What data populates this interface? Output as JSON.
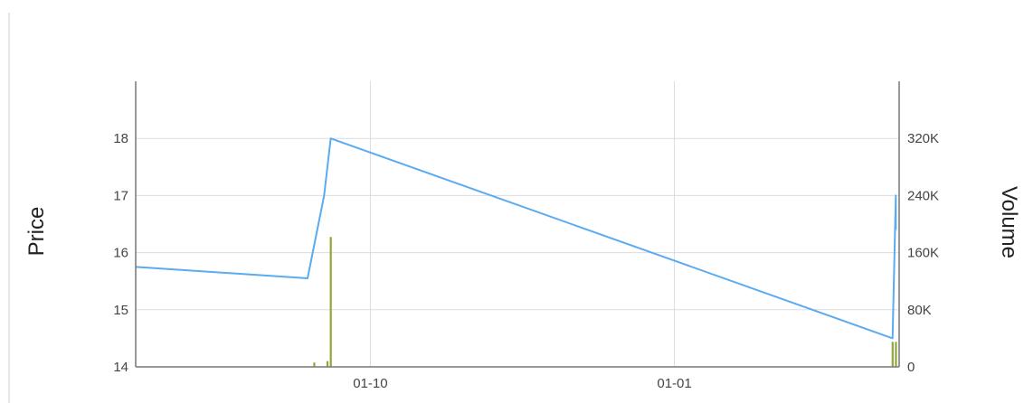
{
  "chart_data": {
    "type": "line",
    "xlabel": "",
    "ylabel": "Price",
    "y2label": "Volume",
    "x_range": [
      "2013-07-22",
      "2014-03-10"
    ],
    "ylim": [
      14,
      19
    ],
    "y2lim": [
      0,
      400000
    ],
    "x_ticks": [
      {
        "date": "2013-10-01",
        "label": "01-10"
      },
      {
        "date": "2014-01-01",
        "label": "01-01"
      }
    ],
    "y_ticks": [
      "14",
      "15",
      "16",
      "17",
      "18"
    ],
    "y2_ticks": [
      "0",
      "80K",
      "160K",
      "240K",
      "320K"
    ],
    "grid": true,
    "series": [
      {
        "kind": "line",
        "color": "#5aabf0",
        "x": [
          "2013-07-22",
          "2013-09-12",
          "2013-09-17",
          "2013-09-19",
          "2014-03-08",
          "2014-03-09",
          "2014-03-09"
        ],
        "values": [
          15.75,
          15.55,
          17.0,
          18.0,
          14.5,
          17.0,
          16.4
        ]
      },
      {
        "kind": "bar",
        "color": "#8fa63a",
        "x": [
          "2013-09-14",
          "2013-09-18",
          "2013-09-19",
          "2014-03-08",
          "2014-03-09"
        ],
        "values": [
          6000,
          8000,
          182000,
          35000,
          35000
        ]
      }
    ]
  }
}
